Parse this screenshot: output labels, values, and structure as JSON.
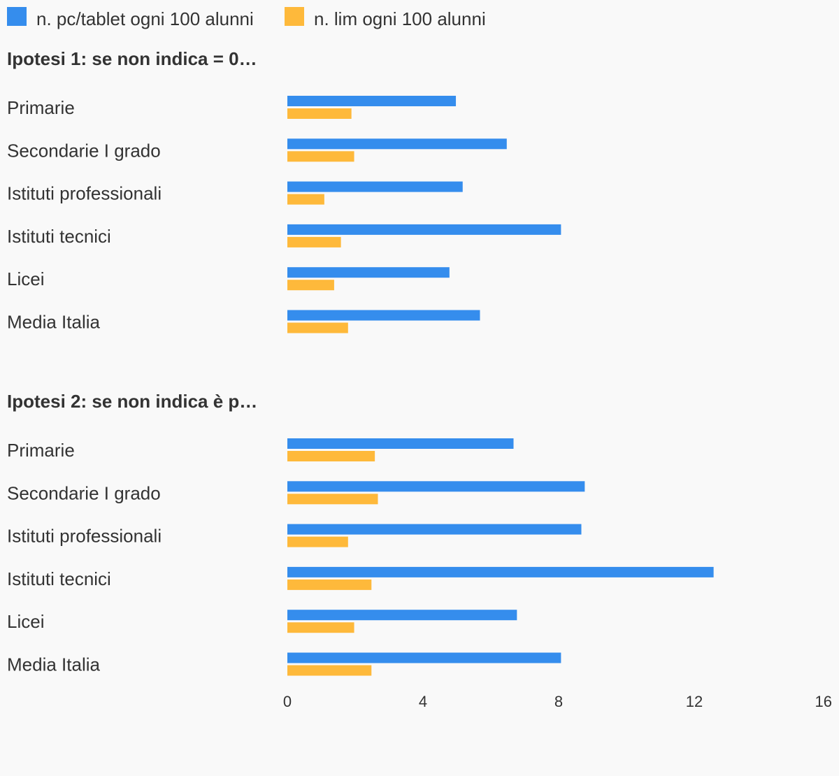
{
  "chart_data": {
    "type": "bar",
    "orientation": "horizontal",
    "legend_position": "top-left",
    "grid": false,
    "xlim": [
      0,
      16
    ],
    "ticks": [
      "0",
      "4",
      "8",
      "12",
      "16"
    ],
    "colors": {
      "series_0": "#358ded",
      "series_1": "#feb93b"
    },
    "series_names": [
      "n. pc/tablet ogni 100 alunni",
      "n. lim ogni 100 alunni"
    ],
    "groups": [
      {
        "title": "Ipotesi 1: se non indica = 0…",
        "categories": [
          "Primarie",
          "Secondarie I grado",
          "Istituti professionali",
          "Istituti tecnici",
          "Licei",
          "Media Italia"
        ],
        "series": [
          {
            "name": "n. pc/tablet ogni 100 alunni",
            "values": [
              4.97,
              6.47,
              5.17,
              8.07,
              4.78,
              5.68
            ]
          },
          {
            "name": "n. lim ogni 100 alunni",
            "values": [
              1.89,
              1.97,
              1.09,
              1.58,
              1.38,
              1.79
            ]
          }
        ]
      },
      {
        "title": "Ipotesi 2: se non indica è p…",
        "categories": [
          "Primarie",
          "Secondarie I grado",
          "Istituti professionali",
          "Istituti tecnici",
          "Licei",
          "Media Italia"
        ],
        "series": [
          {
            "name": "n. pc/tablet ogni 100 alunni",
            "values": [
              6.67,
              8.77,
              8.67,
              12.57,
              6.77,
              8.07
            ]
          },
          {
            "name": "n. lim ogni 100 alunni",
            "values": [
              2.58,
              2.67,
              1.79,
              2.48,
              1.97,
              2.48
            ]
          }
        ]
      }
    ]
  }
}
